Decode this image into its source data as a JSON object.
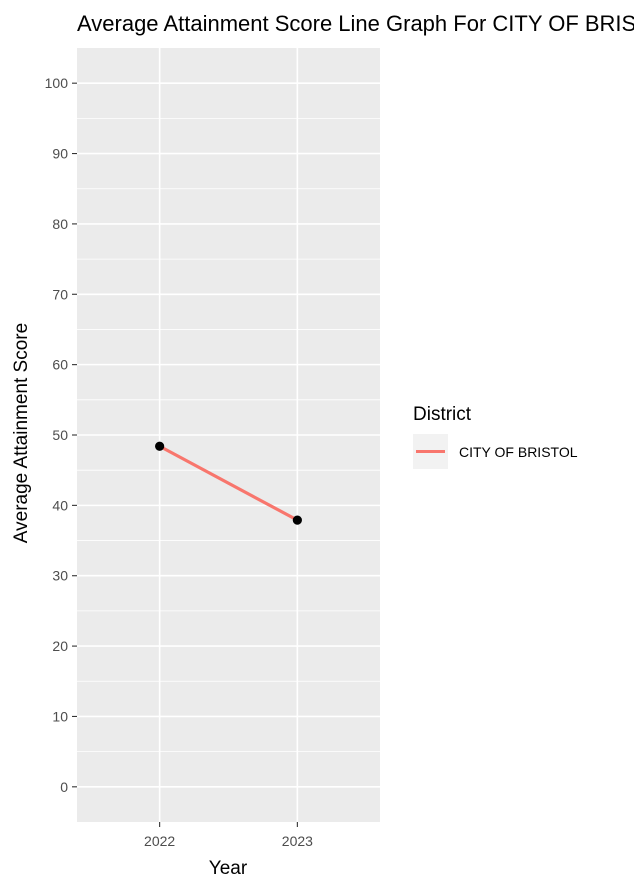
{
  "chart_data": {
    "type": "line",
    "title": "Average Attainment Score Line Graph For CITY OF BRISTOL",
    "xlabel": "Year",
    "ylabel": "Average Attainment Score",
    "categories": [
      "2022",
      "2023"
    ],
    "ylim": [
      -5,
      105
    ],
    "yticks": [
      0,
      10,
      20,
      30,
      40,
      50,
      60,
      70,
      80,
      90,
      100
    ],
    "grid": true,
    "legend": {
      "title": "District",
      "placement": "right"
    },
    "series": [
      {
        "name": "CITY OF BRISTOL",
        "color": "#f8766d",
        "values": [
          48.4,
          37.9
        ]
      }
    ],
    "point_color": "#000000",
    "panel_color": "#ebebeb",
    "grid_color": "#ffffff"
  }
}
